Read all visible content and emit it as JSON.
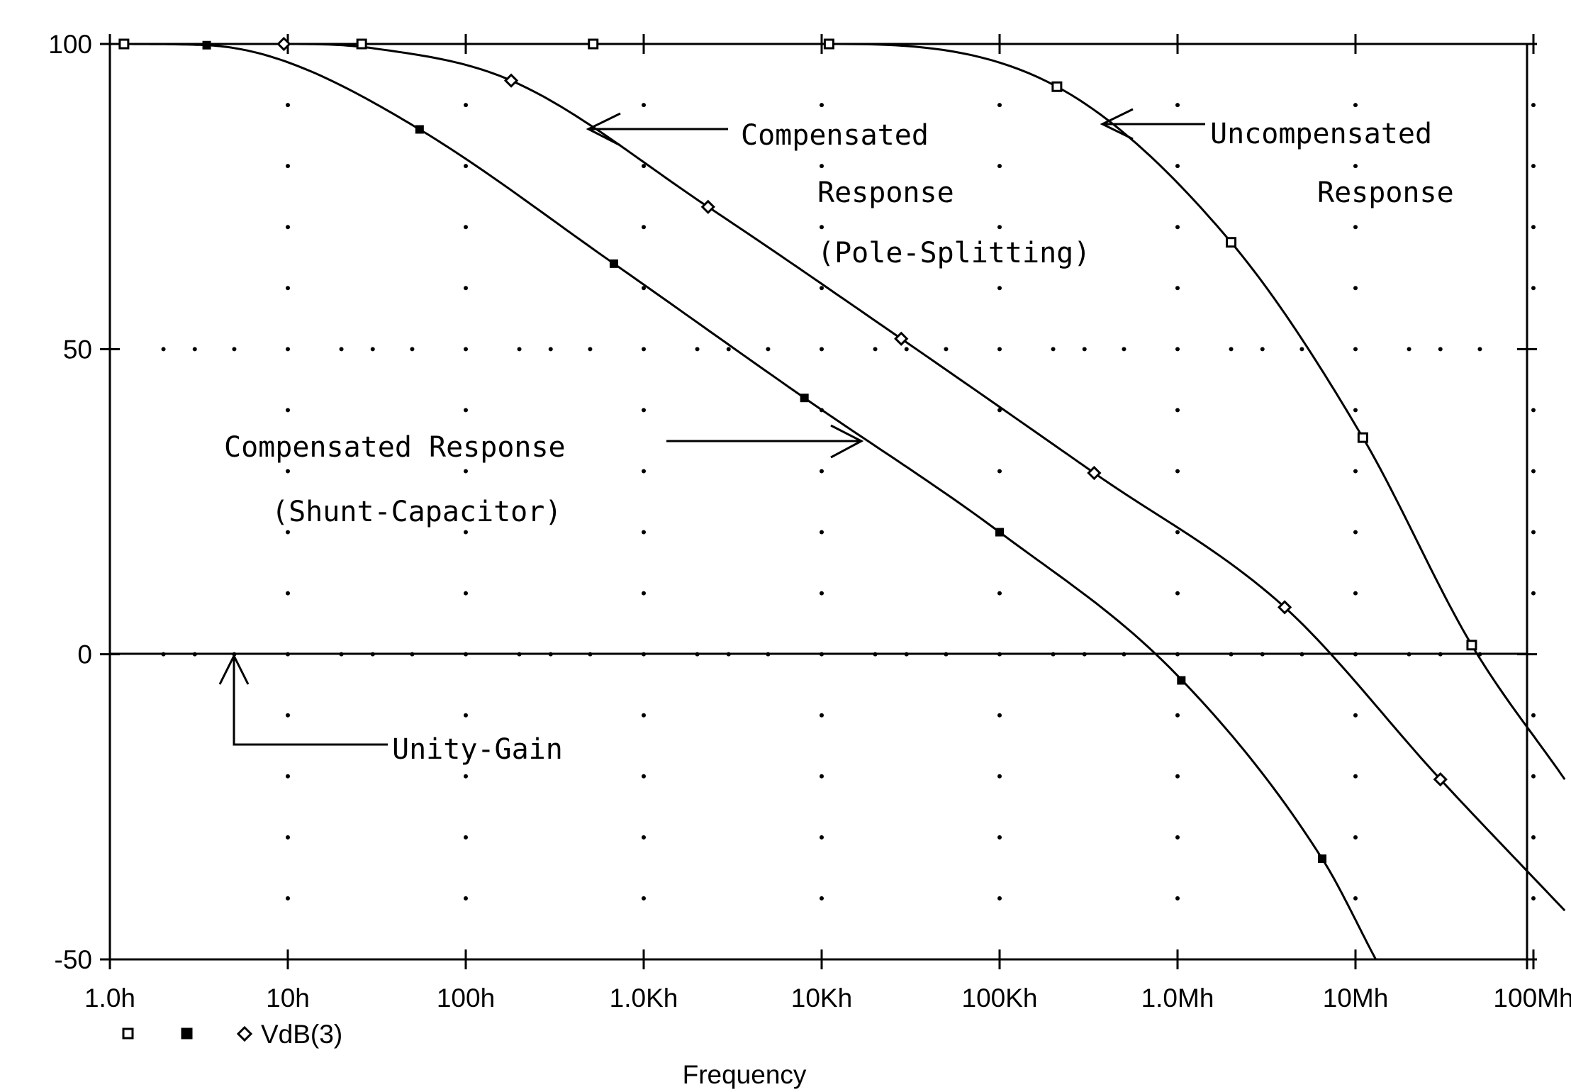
{
  "chart_data": {
    "type": "line",
    "x_scale": "log",
    "xlabel": "Frequency",
    "ylabel": "",
    "xlim": [
      1,
      150000000
    ],
    "ylim": [
      -50,
      100
    ],
    "grid": "dotted",
    "x_ticks": [
      {
        "value": 1,
        "label": "1.0h"
      },
      {
        "value": 10,
        "label": "10h"
      },
      {
        "value": 100,
        "label": "100h"
      },
      {
        "value": 1000,
        "label": "1.0Kh"
      },
      {
        "value": 10000,
        "label": "10Kh"
      },
      {
        "value": 100000,
        "label": "100Kh"
      },
      {
        "value": 1000000,
        "label": "1.0Mh"
      },
      {
        "value": 10000000,
        "label": "10Mh"
      },
      {
        "value": 100000000,
        "label": "100Mh"
      }
    ],
    "y_ticks": [
      {
        "value": 100,
        "label": "100"
      },
      {
        "value": 50,
        "label": "50"
      },
      {
        "value": 0,
        "label": "0"
      },
      {
        "value": -50,
        "label": "-50"
      }
    ],
    "legend": {
      "placement": "bottom-left",
      "items": [
        {
          "marker": "square-open",
          "label": ""
        },
        {
          "marker": "square-filled",
          "label": ""
        },
        {
          "marker": "diamond-open",
          "label": "VdB(3)"
        }
      ]
    },
    "series": [
      {
        "marker": "square-open",
        "x": [
          1.2,
          26,
          520,
          11000,
          210000,
          2000000,
          11000000,
          45000000,
          150000000
        ],
        "y": [
          100,
          100,
          100,
          100,
          93,
          67.5,
          35.5,
          1.5,
          -20.5
        ],
        "marker_x": [
          1.2,
          26,
          520,
          11000,
          210000,
          2000000,
          11000000,
          45000000
        ]
      },
      {
        "marker": "square-filled",
        "x": [
          1.2,
          3.5,
          10,
          55,
          680,
          8000,
          100000,
          1000000,
          6500000,
          13000000
        ],
        "y": [
          100,
          99.8,
          97,
          86,
          64,
          42,
          20,
          -3.5,
          -33.5,
          -50
        ],
        "marker_x": [
          3.5,
          55,
          680,
          8000,
          100000,
          1050000,
          6500000
        ]
      },
      {
        "marker": "diamond-open",
        "x": [
          1.2,
          9.5,
          30,
          180,
          2300,
          28000,
          340000,
          4000000,
          30000000,
          150000000
        ],
        "y": [
          100,
          100,
          99.3,
          94,
          73.3,
          51.7,
          29.7,
          7.7,
          -20.5,
          -42
        ],
        "marker_x": [
          9.5,
          180,
          2300,
          28000,
          340000,
          4000000,
          30000000
        ]
      }
    ],
    "annotations": [
      {
        "lines": [
          "Compensated",
          "Response",
          "(Pole-Splitting)"
        ]
      },
      {
        "lines": [
          "Uncompensated",
          "Response"
        ]
      },
      {
        "lines": [
          "Compensated Response",
          "(Shunt-Capacitor)"
        ]
      },
      {
        "lines": [
          "Unity-Gain"
        ]
      }
    ]
  }
}
